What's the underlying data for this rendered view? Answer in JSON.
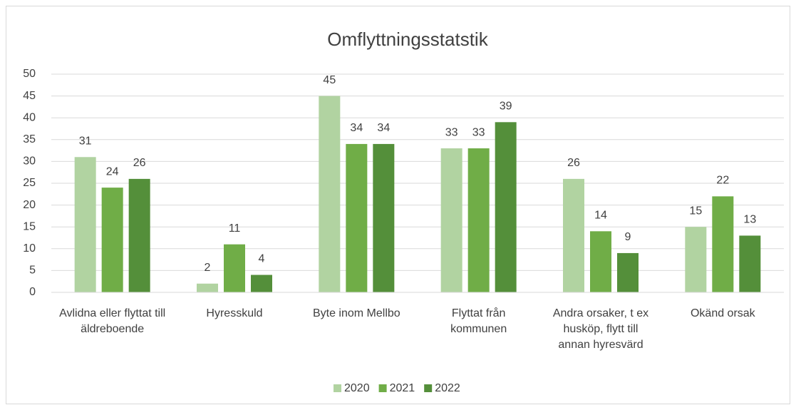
{
  "chart_data": {
    "type": "bar",
    "title": "Omflyttningsstatstik",
    "categories": [
      "Avlidna eller flyttat till äldreboende",
      "Hyresskuld",
      "Byte inom Mellbo",
      "Flyttat från kommunen",
      "Andra orsaker, t ex husköp, flytt till annan hyresvärd",
      "Okänd orsak"
    ],
    "series": [
      {
        "name": "2020",
        "color": "#b1d3a1",
        "values": [
          31,
          2,
          45,
          33,
          26,
          15
        ]
      },
      {
        "name": "2021",
        "color": "#70ad47",
        "values": [
          24,
          11,
          34,
          33,
          14,
          22
        ]
      },
      {
        "name": "2022",
        "color": "#548f3a",
        "values": [
          26,
          4,
          34,
          39,
          9,
          13
        ]
      }
    ],
    "ylim": [
      0,
      50
    ],
    "yticks": [
      0,
      5,
      10,
      15,
      20,
      25,
      30,
      35,
      40,
      45,
      50
    ],
    "grid": true,
    "legend": "bottom"
  }
}
